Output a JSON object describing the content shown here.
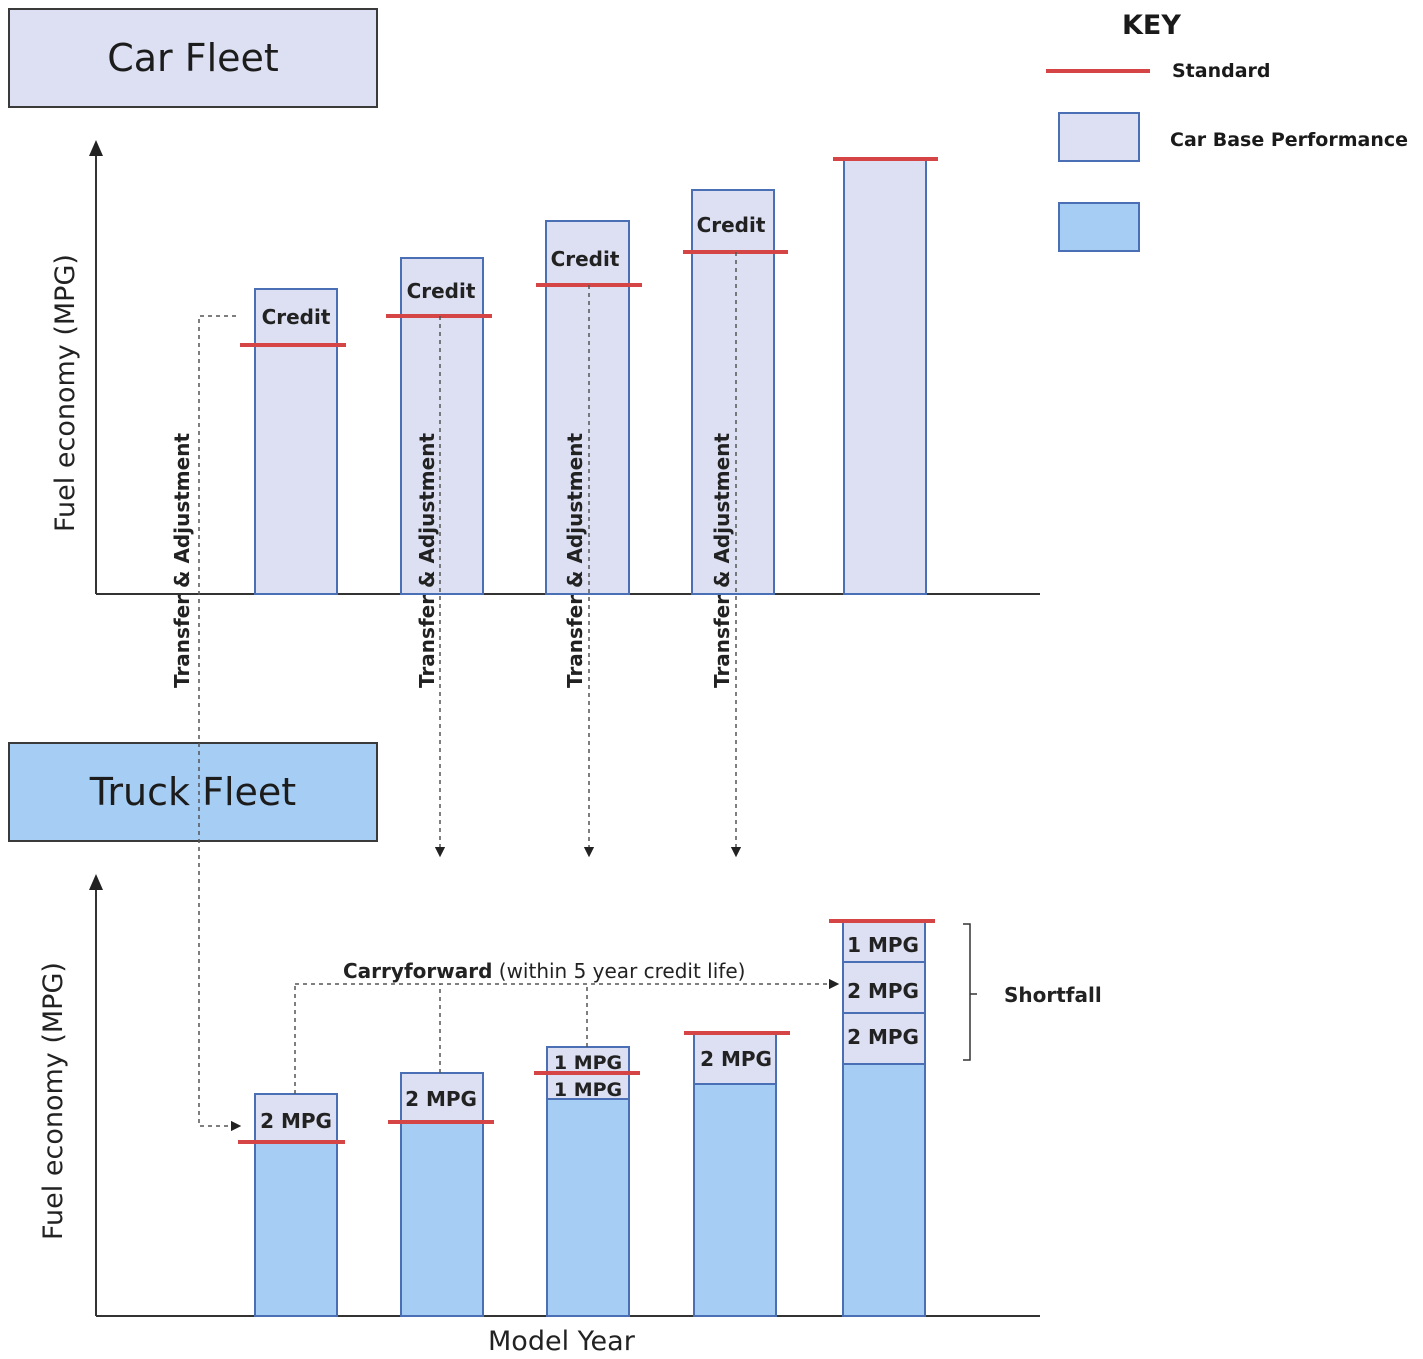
{
  "colors": {
    "standard_line": "#d64545",
    "car_base": "#dde0f2",
    "truck_base": "#a6cdf3",
    "bar_border": "#4a6fb5",
    "axis": "#333333",
    "dashed": "#555555"
  },
  "car_fleet": {
    "title": "Car Fleet"
  },
  "truck_fleet": {
    "title": "Truck Fleet"
  },
  "legend": {
    "title": "KEY",
    "items": [
      {
        "label": "Standard",
        "kind": "line"
      },
      {
        "label": "Car Base Performance",
        "kind": "swatch-car"
      },
      {
        "label": "",
        "kind": "swatch-truck"
      }
    ]
  },
  "axes": {
    "car_ylabel": "Fuel economy (MPG)",
    "truck_ylabel": "Fuel economy (MPG)",
    "xlabel": "Model Year"
  },
  "labels": {
    "credit": "Credit",
    "transfer": "Transfer & Adjustment",
    "carryforward_bold": "Carryforward",
    "carryforward_rest": " (within 5 year credit life)",
    "shortfall": "Shortfall",
    "two_mpg": "2 MPG",
    "one_mpg": "1 MPG"
  }
}
